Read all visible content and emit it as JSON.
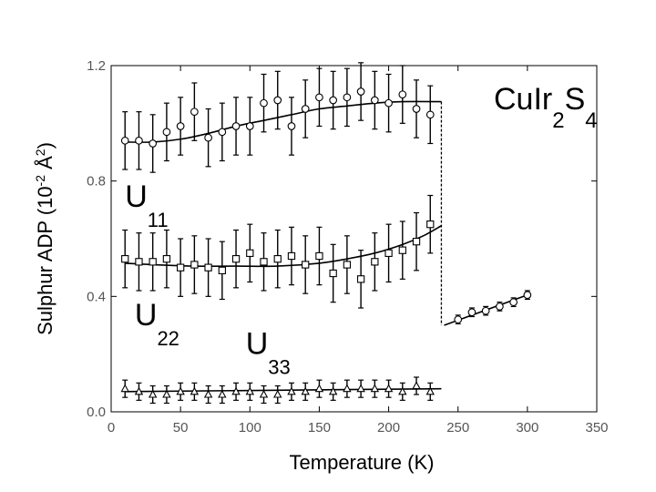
{
  "chart_data": {
    "type": "scatter",
    "xlabel": "Temperature (K)",
    "ylabel": "Sulphur ADP (10",
    "ylabel_sup1": "-2",
    "ylabel_mid": " Å",
    "ylabel_sup2": "2",
    "ylabel_end": ")",
    "xlim": [
      0,
      350
    ],
    "ylim": [
      0.0,
      1.2
    ],
    "x_ticks": [
      0,
      50,
      100,
      150,
      200,
      250,
      300,
      350
    ],
    "y_ticks": [
      0.0,
      0.4,
      0.8,
      1.2
    ],
    "x_tick_labels": [
      "0",
      "50",
      "100",
      "150",
      "200",
      "250",
      "300",
      "350"
    ],
    "y_tick_labels": [
      "0.0",
      "0.4",
      "0.8",
      "1.2"
    ],
    "compound": {
      "base": "CuIr",
      "sub1": "2",
      "mid": "S",
      "sub2": "4"
    },
    "series_labels": [
      {
        "base": "U",
        "sub": "11",
        "x": 10,
        "y": 0.71
      },
      {
        "base": "U",
        "sub": "22",
        "x": 17,
        "y": 0.3
      },
      {
        "base": "U",
        "sub": "33",
        "x": 97,
        "y": 0.2
      }
    ],
    "transition_T": 238,
    "series": [
      {
        "name": "U11",
        "marker": "circle",
        "x": [
          10,
          20,
          30,
          40,
          50,
          60,
          70,
          80,
          90,
          100,
          110,
          120,
          130,
          140,
          150,
          160,
          170,
          180,
          190,
          200,
          210,
          220,
          230
        ],
        "y": [
          0.94,
          0.94,
          0.93,
          0.97,
          0.99,
          1.04,
          0.95,
          0.97,
          0.99,
          0.99,
          1.07,
          1.08,
          0.99,
          1.05,
          1.09,
          1.08,
          1.09,
          1.11,
          1.08,
          1.07,
          1.1,
          1.05,
          1.03
        ],
        "err": [
          0.1,
          0.1,
          0.1,
          0.1,
          0.1,
          0.1,
          0.1,
          0.1,
          0.1,
          0.1,
          0.1,
          0.1,
          0.1,
          0.1,
          0.1,
          0.1,
          0.1,
          0.1,
          0.1,
          0.1,
          0.1,
          0.1,
          0.1
        ],
        "fit": {
          "x": [
            10,
            30,
            50,
            70,
            90,
            110,
            130,
            150,
            170,
            190,
            210,
            238
          ],
          "y": [
            0.935,
            0.935,
            0.945,
            0.965,
            0.99,
            1.01,
            1.03,
            1.05,
            1.06,
            1.07,
            1.075,
            1.075
          ]
        }
      },
      {
        "name": "U22",
        "marker": "square",
        "x": [
          10,
          20,
          30,
          40,
          50,
          60,
          70,
          80,
          90,
          100,
          110,
          120,
          130,
          140,
          150,
          160,
          170,
          180,
          190,
          200,
          210,
          220,
          230
        ],
        "y": [
          0.53,
          0.52,
          0.52,
          0.53,
          0.5,
          0.51,
          0.5,
          0.49,
          0.53,
          0.55,
          0.52,
          0.53,
          0.54,
          0.51,
          0.54,
          0.48,
          0.51,
          0.46,
          0.52,
          0.55,
          0.56,
          0.59,
          0.65
        ],
        "err": [
          0.1,
          0.1,
          0.1,
          0.1,
          0.1,
          0.1,
          0.1,
          0.1,
          0.1,
          0.1,
          0.1,
          0.1,
          0.1,
          0.1,
          0.1,
          0.1,
          0.1,
          0.1,
          0.1,
          0.1,
          0.1,
          0.1,
          0.1
        ],
        "fit": {
          "x": [
            10,
            30,
            60,
            90,
            120,
            150,
            170,
            190,
            210,
            225,
            238
          ],
          "y": [
            0.515,
            0.51,
            0.505,
            0.505,
            0.505,
            0.515,
            0.53,
            0.55,
            0.58,
            0.61,
            0.645
          ]
        }
      },
      {
        "name": "U33",
        "marker": "triangle",
        "x": [
          10,
          20,
          30,
          40,
          50,
          60,
          70,
          80,
          90,
          100,
          110,
          120,
          130,
          140,
          150,
          160,
          170,
          180,
          190,
          200,
          210,
          220,
          230
        ],
        "y": [
          0.08,
          0.07,
          0.06,
          0.06,
          0.07,
          0.07,
          0.06,
          0.06,
          0.07,
          0.07,
          0.06,
          0.06,
          0.07,
          0.07,
          0.08,
          0.07,
          0.08,
          0.08,
          0.08,
          0.08,
          0.07,
          0.09,
          0.07
        ],
        "err": [
          0.03,
          0.03,
          0.03,
          0.03,
          0.03,
          0.03,
          0.03,
          0.03,
          0.03,
          0.03,
          0.03,
          0.03,
          0.03,
          0.03,
          0.03,
          0.03,
          0.03,
          0.03,
          0.03,
          0.03,
          0.03,
          0.03,
          0.03
        ],
        "fit": {
          "x": [
            10,
            238
          ],
          "y": [
            0.07,
            0.08
          ]
        }
      },
      {
        "name": "high-T",
        "marker": "circle",
        "x": [
          250,
          260,
          270,
          280,
          290,
          300
        ],
        "y": [
          0.32,
          0.345,
          0.35,
          0.365,
          0.38,
          0.405
        ],
        "err": [
          0.015,
          0.015,
          0.015,
          0.015,
          0.015,
          0.015
        ],
        "fit": {
          "x": [
            240,
            300
          ],
          "y": [
            0.3,
            0.405
          ]
        }
      }
    ]
  }
}
